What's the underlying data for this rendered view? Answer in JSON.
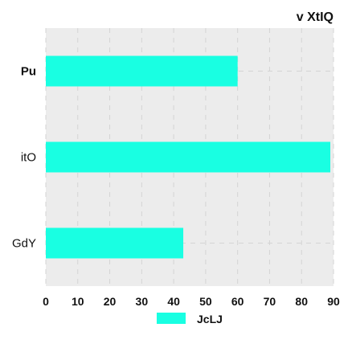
{
  "chart_data": {
    "type": "bar",
    "orientation": "horizontal",
    "title": "v XtIQ",
    "categories": [
      "Pu",
      "itO",
      "GdY"
    ],
    "series": [
      {
        "name": "JcLJ",
        "values": [
          60,
          89,
          43
        ]
      }
    ],
    "xlabel": "",
    "ylabel": "",
    "xlim": [
      0,
      90
    ],
    "xticks": [
      "0",
      "10",
      "20",
      "30",
      "40",
      "50",
      "60",
      "70",
      "80",
      "90"
    ],
    "grid": true,
    "legend": "bottom-center",
    "colors": {
      "bar": "#19ffe2",
      "plot_background": "#ececec",
      "grid": "#d4d4d4"
    }
  }
}
